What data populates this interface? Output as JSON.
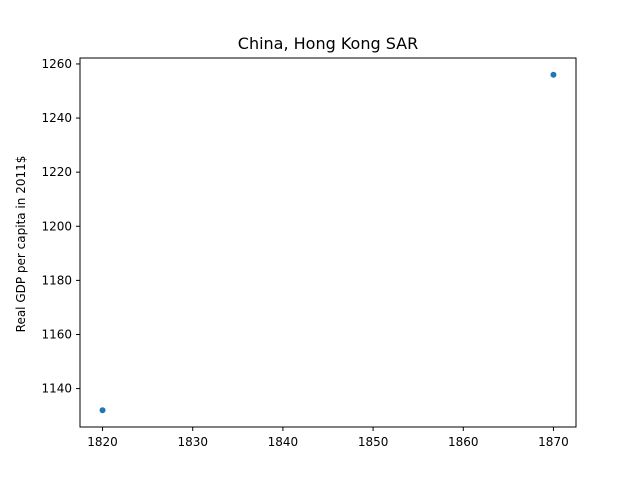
{
  "chart_data": {
    "type": "scatter",
    "title": "China, Hong Kong SAR",
    "xlabel": "",
    "ylabel": "Real GDP per capita in 2011$",
    "x": [
      1820,
      1870
    ],
    "y": [
      1132,
      1256
    ],
    "xlim": [
      1817.5,
      1872.5
    ],
    "ylim": [
      1125.8,
      1262.2
    ],
    "xticks": [
      1820,
      1830,
      1840,
      1850,
      1860,
      1870
    ],
    "yticks": [
      1140,
      1160,
      1180,
      1200,
      1220,
      1240,
      1260
    ],
    "grid": false,
    "legend": "none",
    "marker_color": "#1f77b4"
  }
}
